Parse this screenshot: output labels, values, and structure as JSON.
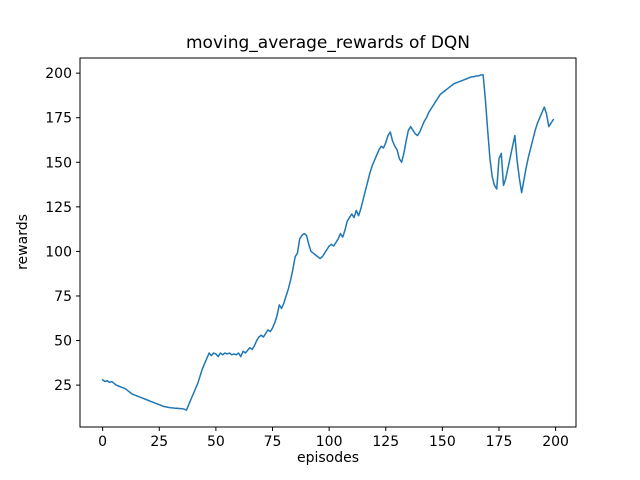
{
  "figure": {
    "background": "#ffffff"
  },
  "chart_data": {
    "type": "line",
    "title": "moving_average_rewards of DQN",
    "xlabel": "episodes",
    "ylabel": "rewards",
    "xlim": [
      -10,
      209
    ],
    "ylim": [
      1.5,
      208.5
    ],
    "xticks": [
      0,
      25,
      50,
      75,
      100,
      125,
      150,
      175,
      200
    ],
    "yticks": [
      25,
      50,
      75,
      100,
      125,
      150,
      175,
      200
    ],
    "grid": false,
    "legend_position": "none",
    "line_color": "#1f77b4",
    "axis_color": "#000000",
    "series": [
      {
        "name": "moving_average_rewards",
        "points": [
          [
            0,
            28
          ],
          [
            1,
            27
          ],
          [
            2,
            27.5
          ],
          [
            3,
            26.5
          ],
          [
            4,
            27
          ],
          [
            5,
            26
          ],
          [
            6,
            25
          ],
          [
            7,
            24.5
          ],
          [
            8,
            24
          ],
          [
            9,
            23.5
          ],
          [
            10,
            23
          ],
          [
            11,
            22
          ],
          [
            12,
            21
          ],
          [
            13,
            20
          ],
          [
            14,
            19.5
          ],
          [
            15,
            19
          ],
          [
            16,
            18.5
          ],
          [
            17,
            18
          ],
          [
            18,
            17.5
          ],
          [
            19,
            17
          ],
          [
            20,
            16.5
          ],
          [
            21,
            16
          ],
          [
            22,
            15.5
          ],
          [
            23,
            15
          ],
          [
            24,
            14.5
          ],
          [
            25,
            14
          ],
          [
            26,
            13.5
          ],
          [
            27,
            13
          ],
          [
            28,
            12.8
          ],
          [
            29,
            12.5
          ],
          [
            30,
            12.3
          ],
          [
            31,
            12.2
          ],
          [
            32,
            12
          ],
          [
            33,
            12
          ],
          [
            34,
            11.8
          ],
          [
            35,
            11.8
          ],
          [
            36,
            11.5
          ],
          [
            37,
            11
          ],
          [
            38,
            14
          ],
          [
            39,
            17
          ],
          [
            40,
            20
          ],
          [
            41,
            23
          ],
          [
            42,
            26
          ],
          [
            43,
            30
          ],
          [
            44,
            34
          ],
          [
            45,
            37
          ],
          [
            46,
            40
          ],
          [
            47,
            43
          ],
          [
            48,
            41.5
          ],
          [
            49,
            43
          ],
          [
            50,
            42.5
          ],
          [
            51,
            41
          ],
          [
            52,
            43
          ],
          [
            53,
            42
          ],
          [
            54,
            43
          ],
          [
            55,
            42.5
          ],
          [
            56,
            43
          ],
          [
            57,
            42
          ],
          [
            58,
            42.5
          ],
          [
            59,
            42
          ],
          [
            60,
            43
          ],
          [
            61,
            41
          ],
          [
            62,
            44
          ],
          [
            63,
            43
          ],
          [
            64,
            44.5
          ],
          [
            65,
            46
          ],
          [
            66,
            45
          ],
          [
            67,
            47
          ],
          [
            68,
            50
          ],
          [
            69,
            52
          ],
          [
            70,
            53
          ],
          [
            71,
            52
          ],
          [
            72,
            54
          ],
          [
            73,
            56
          ],
          [
            74,
            55
          ],
          [
            75,
            57
          ],
          [
            76,
            60
          ],
          [
            77,
            64
          ],
          [
            78,
            70
          ],
          [
            79,
            68
          ],
          [
            80,
            71
          ],
          [
            81,
            75
          ],
          [
            82,
            79
          ],
          [
            83,
            84
          ],
          [
            84,
            90
          ],
          [
            85,
            97
          ],
          [
            86,
            99
          ],
          [
            87,
            107
          ],
          [
            88,
            109
          ],
          [
            89,
            110
          ],
          [
            90,
            109
          ],
          [
            91,
            104
          ],
          [
            92,
            100
          ],
          [
            93,
            99
          ],
          [
            94,
            98
          ],
          [
            95,
            97
          ],
          [
            96,
            96
          ],
          [
            97,
            97
          ],
          [
            98,
            99
          ],
          [
            99,
            101
          ],
          [
            100,
            103
          ],
          [
            101,
            104
          ],
          [
            102,
            103
          ],
          [
            103,
            105
          ],
          [
            104,
            107
          ],
          [
            105,
            110
          ],
          [
            106,
            108
          ],
          [
            107,
            112
          ],
          [
            108,
            117
          ],
          [
            109,
            119
          ],
          [
            110,
            121
          ],
          [
            111,
            119
          ],
          [
            112,
            123
          ],
          [
            113,
            120
          ],
          [
            114,
            124
          ],
          [
            115,
            129
          ],
          [
            116,
            134
          ],
          [
            117,
            139
          ],
          [
            118,
            144
          ],
          [
            119,
            148
          ],
          [
            120,
            151
          ],
          [
            121,
            154
          ],
          [
            122,
            157
          ],
          [
            123,
            159
          ],
          [
            124,
            158
          ],
          [
            125,
            161
          ],
          [
            126,
            165
          ],
          [
            127,
            167
          ],
          [
            128,
            162
          ],
          [
            129,
            159
          ],
          [
            130,
            157
          ],
          [
            131,
            152
          ],
          [
            132,
            150
          ],
          [
            133,
            155
          ],
          [
            134,
            162
          ],
          [
            135,
            168
          ],
          [
            136,
            170
          ],
          [
            137,
            168
          ],
          [
            138,
            166
          ],
          [
            139,
            165
          ],
          [
            140,
            167
          ],
          [
            141,
            170
          ],
          [
            142,
            173
          ],
          [
            143,
            175
          ],
          [
            144,
            178
          ],
          [
            145,
            180
          ],
          [
            146,
            182
          ],
          [
            147,
            184
          ],
          [
            148,
            186
          ],
          [
            149,
            188
          ],
          [
            150,
            189
          ],
          [
            151,
            190
          ],
          [
            152,
            191
          ],
          [
            153,
            192
          ],
          [
            154,
            193
          ],
          [
            155,
            194
          ],
          [
            156,
            194.5
          ],
          [
            157,
            195
          ],
          [
            158,
            195.5
          ],
          [
            159,
            196
          ],
          [
            160,
            196.5
          ],
          [
            161,
            197
          ],
          [
            162,
            197.5
          ],
          [
            163,
            198
          ],
          [
            164,
            198
          ],
          [
            165,
            198.5
          ],
          [
            166,
            198.5
          ],
          [
            167,
            199
          ],
          [
            168,
            199
          ],
          [
            169,
            185
          ],
          [
            170,
            168
          ],
          [
            171,
            152
          ],
          [
            172,
            142
          ],
          [
            173,
            137
          ],
          [
            174,
            135
          ],
          [
            175,
            152
          ],
          [
            176,
            155
          ],
          [
            177,
            137
          ],
          [
            178,
            141
          ],
          [
            179,
            147
          ],
          [
            180,
            153
          ],
          [
            181,
            159
          ],
          [
            182,
            165
          ],
          [
            183,
            151
          ],
          [
            184,
            141
          ],
          [
            185,
            133
          ],
          [
            186,
            140
          ],
          [
            187,
            147
          ],
          [
            188,
            153
          ],
          [
            189,
            158
          ],
          [
            190,
            163
          ],
          [
            191,
            168
          ],
          [
            192,
            172
          ],
          [
            193,
            175
          ],
          [
            194,
            178
          ],
          [
            195,
            181
          ],
          [
            196,
            177
          ],
          [
            197,
            170
          ],
          [
            198,
            172
          ],
          [
            199,
            174
          ]
        ]
      }
    ]
  }
}
